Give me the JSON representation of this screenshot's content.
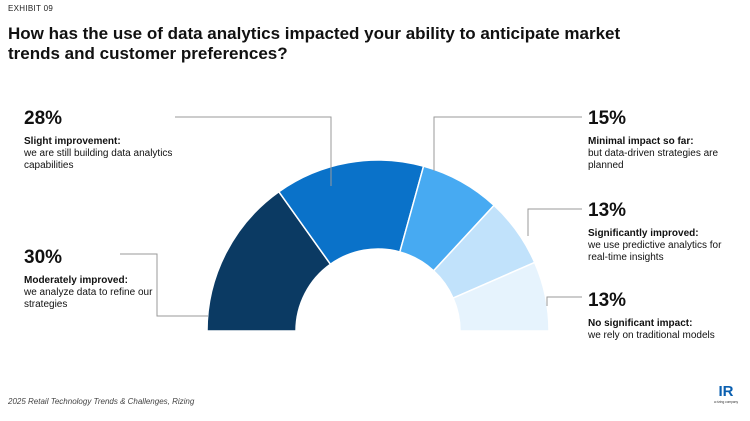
{
  "exhibit": "EXHIBIT 09",
  "title": "How has the use of data analytics impacted your ability to anticipate market trends and customer preferences?",
  "source": "2025 Retail Technology Trends & Challenges, Rizing",
  "logo": {
    "text": "IR",
    "subtext": "a rizing company"
  },
  "colors": {
    "moderately": "#0b3a63",
    "slight": "#0a72c9",
    "minimal": "#47aaf2",
    "significantly": "#c1e2fb",
    "no_impact": "#e6f3fd"
  },
  "chart_data": {
    "type": "pie",
    "subtype": "half-donut",
    "slices": [
      {
        "key": "moderately",
        "value": 30,
        "label": "30%",
        "head": "Moderately improved:",
        "desc": "we analyze data to refine our strategies"
      },
      {
        "key": "slight",
        "value": 28,
        "label": "28%",
        "head": "Slight improvement:",
        "desc": "we are still building data analytics capabilities"
      },
      {
        "key": "minimal",
        "value": 15,
        "label": "15%",
        "head": "Minimal impact so far:",
        "desc": "but data-driven strategies are planned"
      },
      {
        "key": "significantly",
        "value": 13,
        "label": "13%",
        "head": "Significantly improved:",
        "desc": "we use predictive analytics for real-time insights"
      },
      {
        "key": "no_impact",
        "value": 13,
        "label": "13%",
        "head": "No significant impact:",
        "desc": "we rely on traditional models"
      }
    ]
  }
}
